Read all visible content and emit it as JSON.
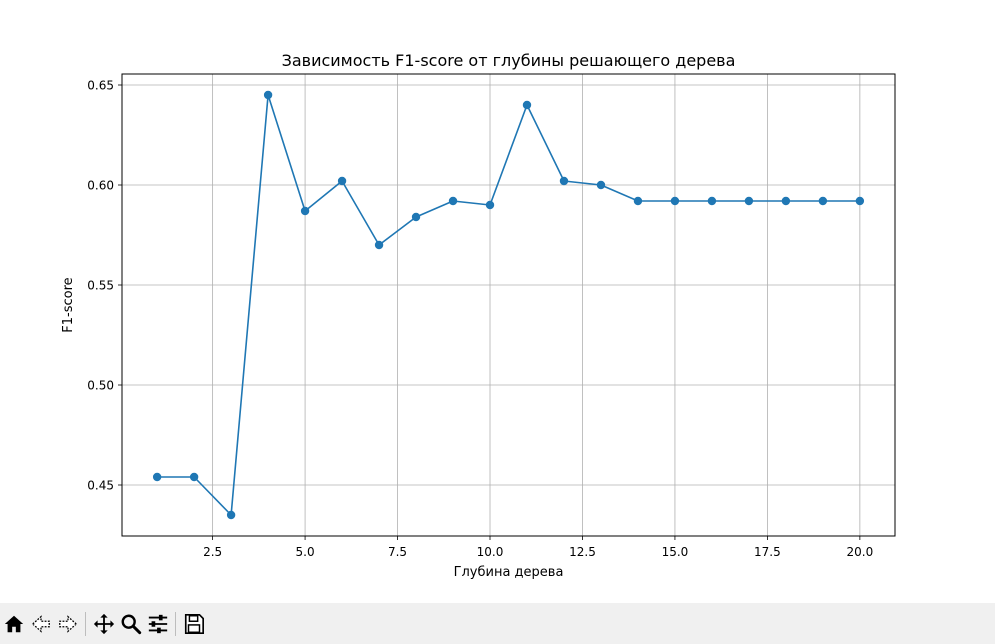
{
  "chart_data": {
    "type": "line",
    "title": "Зависимость F1-score от глубины решающего дерева",
    "xlabel": "Глубина дерева",
    "ylabel": "F1-score",
    "xlim": [
      0.05,
      20.95
    ],
    "ylim": [
      0.4245,
      0.6555
    ],
    "xticks": [
      2.5,
      5.0,
      7.5,
      10.0,
      12.5,
      15.0,
      17.5,
      20.0
    ],
    "xtick_labels": [
      "2.5",
      "5.0",
      "7.5",
      "10.0",
      "12.5",
      "15.0",
      "17.5",
      "20.0"
    ],
    "yticks": [
      0.45,
      0.5,
      0.55,
      0.6,
      0.65
    ],
    "ytick_labels": [
      "0.45",
      "0.50",
      "0.55",
      "0.60",
      "0.65"
    ],
    "grid": true,
    "marker": "circle",
    "color": "#1f77b4",
    "x": [
      1,
      2,
      3,
      4,
      5,
      6,
      7,
      8,
      9,
      10,
      11,
      12,
      13,
      14,
      15,
      16,
      17,
      18,
      19,
      20
    ],
    "y": [
      0.454,
      0.454,
      0.435,
      0.645,
      0.587,
      0.602,
      0.57,
      0.584,
      0.592,
      0.59,
      0.64,
      0.602,
      0.6,
      0.592,
      0.592,
      0.592,
      0.592,
      0.592,
      0.592,
      0.592
    ]
  },
  "toolbar": {
    "buttons": [
      {
        "icon": "home-icon"
      },
      {
        "icon": "back-arrow-icon"
      },
      {
        "icon": "forward-arrow-icon"
      },
      {
        "icon": "pan-icon"
      },
      {
        "icon": "zoom-icon"
      },
      {
        "icon": "configure-subplots-icon"
      },
      {
        "icon": "save-icon"
      }
    ]
  }
}
